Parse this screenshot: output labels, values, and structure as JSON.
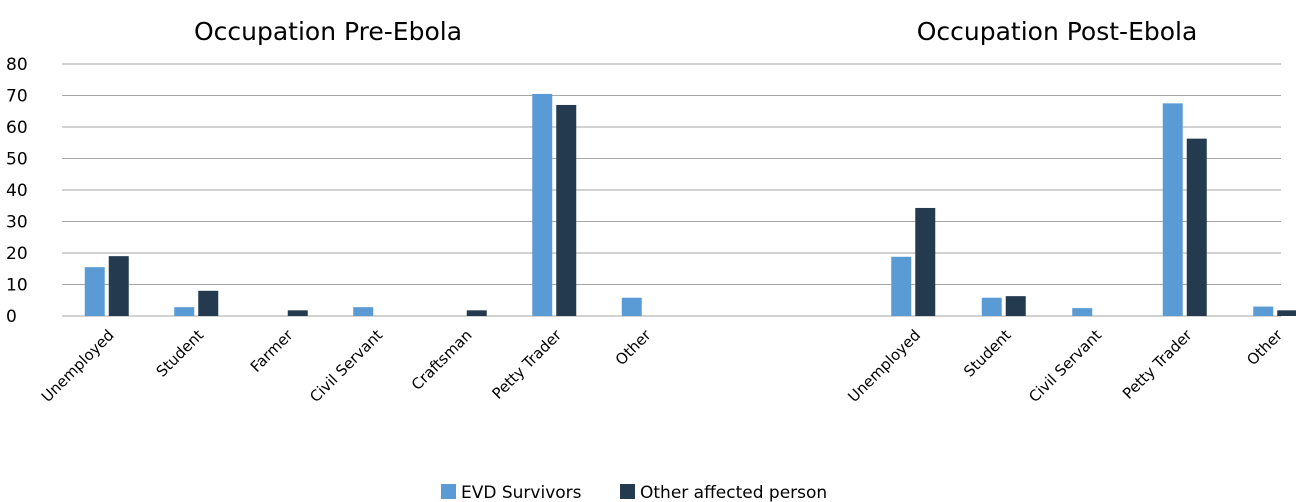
{
  "chart_data": {
    "type": "bar",
    "grid": true,
    "legend_position": "bottom-center",
    "ylim": [
      0,
      80
    ],
    "yticks": [
      0,
      10,
      20,
      30,
      40,
      50,
      60,
      70,
      80
    ],
    "series": [
      {
        "name": "EVD Survivors",
        "color": "#5b9bd5"
      },
      {
        "name": "Other affected person",
        "color": "#243a4e"
      }
    ],
    "panels": [
      {
        "title": "Occupation Pre-Ebola",
        "categories": [
          "Unemployed",
          "Student",
          "Farmer",
          "Civil Servant",
          "Craftsman",
          "Petty Trader",
          "Other"
        ],
        "values": [
          [
            15.5,
            2.8,
            0,
            2.8,
            0,
            70.5,
            5.8
          ],
          [
            19,
            8,
            1.8,
            0,
            1.8,
            67,
            0
          ]
        ]
      },
      {
        "title": "Occupation Post-Ebola",
        "categories": [
          "Unemployed",
          "Student",
          "Civil Servant",
          "Petty Trader",
          "Other"
        ],
        "values": [
          [
            18.8,
            5.8,
            2.5,
            67.5,
            3
          ],
          [
            34.3,
            6.3,
            0,
            56.3,
            1.8
          ]
        ]
      }
    ]
  }
}
